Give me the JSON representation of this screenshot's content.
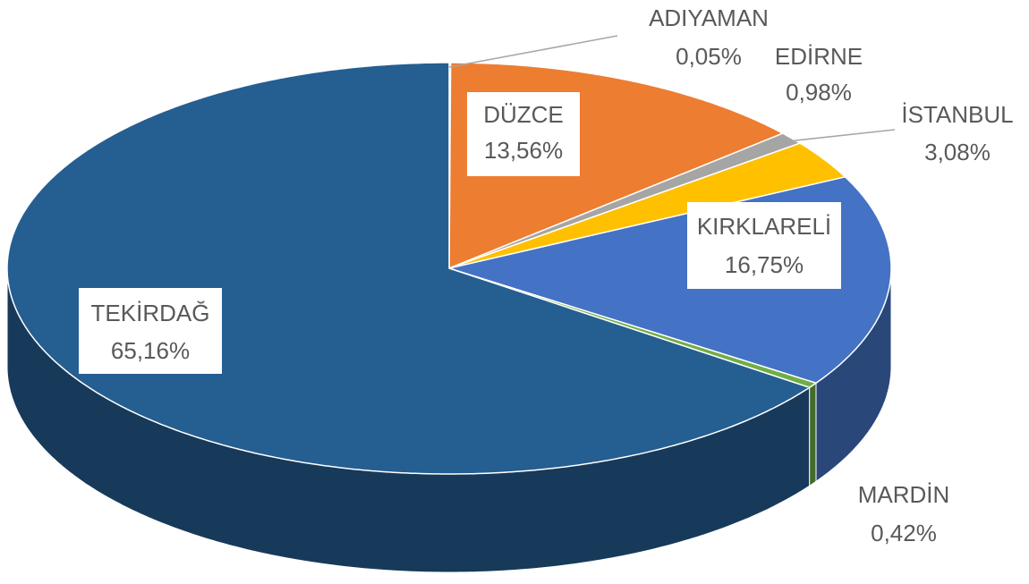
{
  "chart_data": {
    "type": "pie",
    "categories": [
      "ADIYAMAN",
      "DÜZCE",
      "EDİRNE",
      "İSTANBUL",
      "KIRKLARELİ",
      "MARDİN",
      "TEKİRDAĞ"
    ],
    "values": [
      0.05,
      13.56,
      0.98,
      3.08,
      16.75,
      0.42,
      65.16
    ],
    "value_labels": [
      "0,05%",
      "13,56%",
      "0,98%",
      "3,08%",
      "16,75%",
      "0,42%",
      "65,16%"
    ],
    "colors": [
      "#5B9BD5",
      "#ED7D31",
      "#A5A5A5",
      "#FFC000",
      "#4472C4",
      "#70AD47",
      "#255E91"
    ]
  }
}
